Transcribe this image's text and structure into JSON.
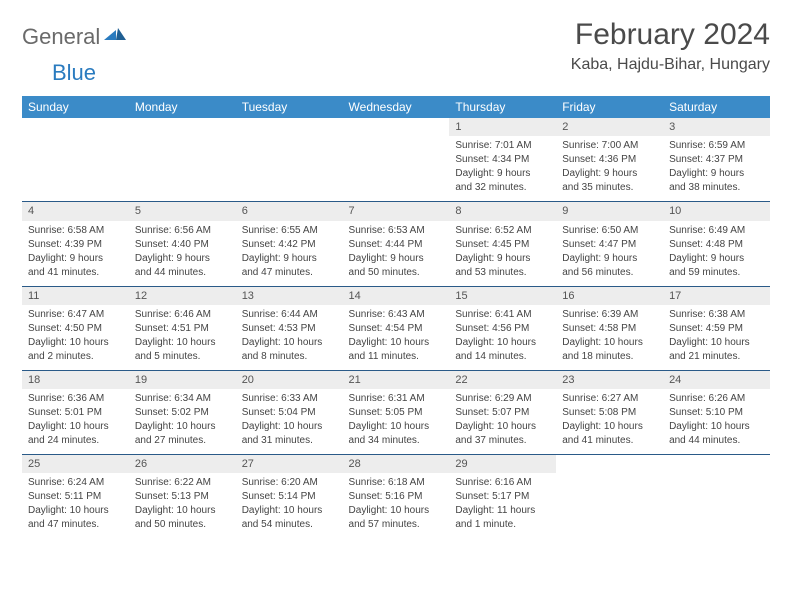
{
  "logo": {
    "word1": "General",
    "word2": "Blue"
  },
  "title": "February 2024",
  "location": "Kaba, Hajdu-Bihar, Hungary",
  "colors": {
    "header_bg": "#3b8bc8",
    "header_text": "#ffffff",
    "daynum_bg": "#ededed",
    "row_border": "#2a5a88",
    "logo_gray": "#6a6a6a",
    "logo_blue": "#2a7bbf"
  },
  "weekdays": [
    "Sunday",
    "Monday",
    "Tuesday",
    "Wednesday",
    "Thursday",
    "Friday",
    "Saturday"
  ],
  "weeks": [
    [
      {
        "empty": true
      },
      {
        "empty": true
      },
      {
        "empty": true
      },
      {
        "empty": true
      },
      {
        "day": "1",
        "sunrise": "Sunrise: 7:01 AM",
        "sunset": "Sunset: 4:34 PM",
        "daylight1": "Daylight: 9 hours",
        "daylight2": "and 32 minutes."
      },
      {
        "day": "2",
        "sunrise": "Sunrise: 7:00 AM",
        "sunset": "Sunset: 4:36 PM",
        "daylight1": "Daylight: 9 hours",
        "daylight2": "and 35 minutes."
      },
      {
        "day": "3",
        "sunrise": "Sunrise: 6:59 AM",
        "sunset": "Sunset: 4:37 PM",
        "daylight1": "Daylight: 9 hours",
        "daylight2": "and 38 minutes."
      }
    ],
    [
      {
        "day": "4",
        "sunrise": "Sunrise: 6:58 AM",
        "sunset": "Sunset: 4:39 PM",
        "daylight1": "Daylight: 9 hours",
        "daylight2": "and 41 minutes."
      },
      {
        "day": "5",
        "sunrise": "Sunrise: 6:56 AM",
        "sunset": "Sunset: 4:40 PM",
        "daylight1": "Daylight: 9 hours",
        "daylight2": "and 44 minutes."
      },
      {
        "day": "6",
        "sunrise": "Sunrise: 6:55 AM",
        "sunset": "Sunset: 4:42 PM",
        "daylight1": "Daylight: 9 hours",
        "daylight2": "and 47 minutes."
      },
      {
        "day": "7",
        "sunrise": "Sunrise: 6:53 AM",
        "sunset": "Sunset: 4:44 PM",
        "daylight1": "Daylight: 9 hours",
        "daylight2": "and 50 minutes."
      },
      {
        "day": "8",
        "sunrise": "Sunrise: 6:52 AM",
        "sunset": "Sunset: 4:45 PM",
        "daylight1": "Daylight: 9 hours",
        "daylight2": "and 53 minutes."
      },
      {
        "day": "9",
        "sunrise": "Sunrise: 6:50 AM",
        "sunset": "Sunset: 4:47 PM",
        "daylight1": "Daylight: 9 hours",
        "daylight2": "and 56 minutes."
      },
      {
        "day": "10",
        "sunrise": "Sunrise: 6:49 AM",
        "sunset": "Sunset: 4:48 PM",
        "daylight1": "Daylight: 9 hours",
        "daylight2": "and 59 minutes."
      }
    ],
    [
      {
        "day": "11",
        "sunrise": "Sunrise: 6:47 AM",
        "sunset": "Sunset: 4:50 PM",
        "daylight1": "Daylight: 10 hours",
        "daylight2": "and 2 minutes."
      },
      {
        "day": "12",
        "sunrise": "Sunrise: 6:46 AM",
        "sunset": "Sunset: 4:51 PM",
        "daylight1": "Daylight: 10 hours",
        "daylight2": "and 5 minutes."
      },
      {
        "day": "13",
        "sunrise": "Sunrise: 6:44 AM",
        "sunset": "Sunset: 4:53 PM",
        "daylight1": "Daylight: 10 hours",
        "daylight2": "and 8 minutes."
      },
      {
        "day": "14",
        "sunrise": "Sunrise: 6:43 AM",
        "sunset": "Sunset: 4:54 PM",
        "daylight1": "Daylight: 10 hours",
        "daylight2": "and 11 minutes."
      },
      {
        "day": "15",
        "sunrise": "Sunrise: 6:41 AM",
        "sunset": "Sunset: 4:56 PM",
        "daylight1": "Daylight: 10 hours",
        "daylight2": "and 14 minutes."
      },
      {
        "day": "16",
        "sunrise": "Sunrise: 6:39 AM",
        "sunset": "Sunset: 4:58 PM",
        "daylight1": "Daylight: 10 hours",
        "daylight2": "and 18 minutes."
      },
      {
        "day": "17",
        "sunrise": "Sunrise: 6:38 AM",
        "sunset": "Sunset: 4:59 PM",
        "daylight1": "Daylight: 10 hours",
        "daylight2": "and 21 minutes."
      }
    ],
    [
      {
        "day": "18",
        "sunrise": "Sunrise: 6:36 AM",
        "sunset": "Sunset: 5:01 PM",
        "daylight1": "Daylight: 10 hours",
        "daylight2": "and 24 minutes."
      },
      {
        "day": "19",
        "sunrise": "Sunrise: 6:34 AM",
        "sunset": "Sunset: 5:02 PM",
        "daylight1": "Daylight: 10 hours",
        "daylight2": "and 27 minutes."
      },
      {
        "day": "20",
        "sunrise": "Sunrise: 6:33 AM",
        "sunset": "Sunset: 5:04 PM",
        "daylight1": "Daylight: 10 hours",
        "daylight2": "and 31 minutes."
      },
      {
        "day": "21",
        "sunrise": "Sunrise: 6:31 AM",
        "sunset": "Sunset: 5:05 PM",
        "daylight1": "Daylight: 10 hours",
        "daylight2": "and 34 minutes."
      },
      {
        "day": "22",
        "sunrise": "Sunrise: 6:29 AM",
        "sunset": "Sunset: 5:07 PM",
        "daylight1": "Daylight: 10 hours",
        "daylight2": "and 37 minutes."
      },
      {
        "day": "23",
        "sunrise": "Sunrise: 6:27 AM",
        "sunset": "Sunset: 5:08 PM",
        "daylight1": "Daylight: 10 hours",
        "daylight2": "and 41 minutes."
      },
      {
        "day": "24",
        "sunrise": "Sunrise: 6:26 AM",
        "sunset": "Sunset: 5:10 PM",
        "daylight1": "Daylight: 10 hours",
        "daylight2": "and 44 minutes."
      }
    ],
    [
      {
        "day": "25",
        "sunrise": "Sunrise: 6:24 AM",
        "sunset": "Sunset: 5:11 PM",
        "daylight1": "Daylight: 10 hours",
        "daylight2": "and 47 minutes."
      },
      {
        "day": "26",
        "sunrise": "Sunrise: 6:22 AM",
        "sunset": "Sunset: 5:13 PM",
        "daylight1": "Daylight: 10 hours",
        "daylight2": "and 50 minutes."
      },
      {
        "day": "27",
        "sunrise": "Sunrise: 6:20 AM",
        "sunset": "Sunset: 5:14 PM",
        "daylight1": "Daylight: 10 hours",
        "daylight2": "and 54 minutes."
      },
      {
        "day": "28",
        "sunrise": "Sunrise: 6:18 AM",
        "sunset": "Sunset: 5:16 PM",
        "daylight1": "Daylight: 10 hours",
        "daylight2": "and 57 minutes."
      },
      {
        "day": "29",
        "sunrise": "Sunrise: 6:16 AM",
        "sunset": "Sunset: 5:17 PM",
        "daylight1": "Daylight: 11 hours",
        "daylight2": "and 1 minute."
      },
      {
        "empty": true
      },
      {
        "empty": true
      }
    ]
  ]
}
